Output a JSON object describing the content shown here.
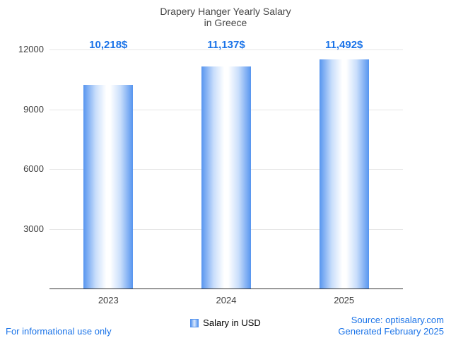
{
  "chart_data": {
    "type": "bar",
    "title": "Drapery Hanger Yearly Salary\nin Greece",
    "categories": [
      "2023",
      "2024",
      "2025"
    ],
    "series": [
      {
        "name": "Salary in USD",
        "values": [
          10218,
          11137,
          11492
        ]
      }
    ],
    "value_labels": [
      "10,218$",
      "11,137$",
      "11,492$"
    ],
    "xlabel": "",
    "ylabel": "",
    "ylim": [
      0,
      12000
    ],
    "yticks": [
      3000,
      6000,
      9000,
      12000
    ],
    "grid": true,
    "legend_position": "bottom"
  },
  "legend": {
    "label": "Salary in USD"
  },
  "footer": {
    "disclaimer": "For informational use only",
    "source": "Source: optisalary.com",
    "generated": "Generated February 2025"
  },
  "colors": {
    "accent_blue": "#1a73e8",
    "bar_blue": "#5795ef",
    "grid_gray": "#e6e6e6",
    "axis_dark": "#333333",
    "title_gray": "#464646"
  }
}
